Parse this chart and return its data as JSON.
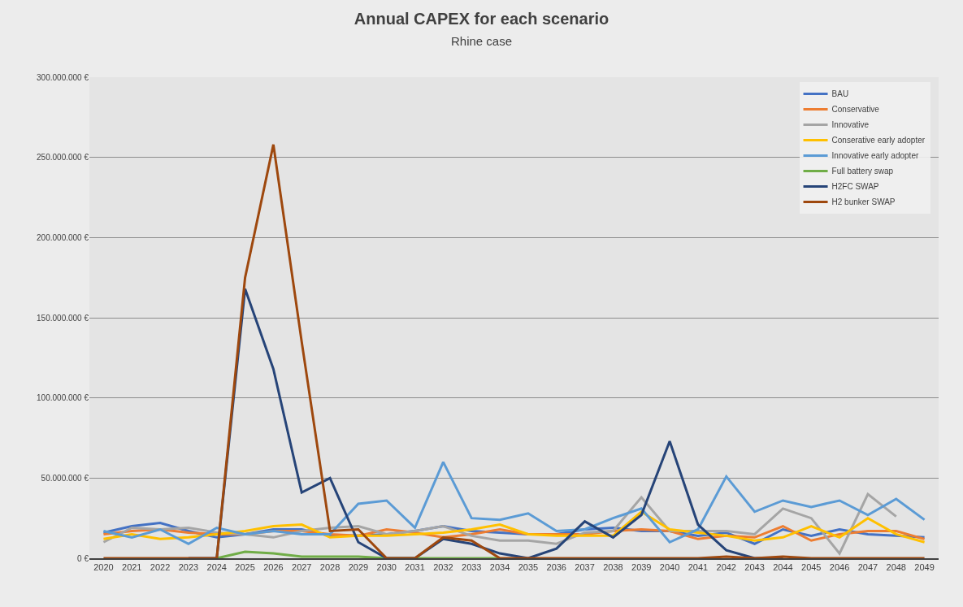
{
  "chart_data": {
    "type": "line",
    "title": "Annual CAPEX for each scenario",
    "subtitle": "Rhine case",
    "categories": [
      "2020",
      "2021",
      "2022",
      "2023",
      "2024",
      "2025",
      "2026",
      "2027",
      "2028",
      "2029",
      "2030",
      "2031",
      "2032",
      "2033",
      "2034",
      "2035",
      "2036",
      "2037",
      "2038",
      "2039",
      "2040",
      "2041",
      "2042",
      "2043",
      "2044",
      "2045",
      "2046",
      "2047",
      "2048",
      "2049"
    ],
    "ylim": [
      0,
      300000000
    ],
    "yticks": [
      {
        "value": 0,
        "label": "0 €"
      },
      {
        "value": 50000000,
        "label": "50.000.000 €"
      },
      {
        "value": 100000000,
        "label": "100.000.000 €"
      },
      {
        "value": 150000000,
        "label": "150.000.000 €"
      },
      {
        "value": 200000000,
        "label": "200.000.000 €"
      },
      {
        "value": 250000000,
        "label": "250.000.000 €"
      },
      {
        "value": 300000000,
        "label": "300.000.000 €"
      }
    ],
    "grid": "y",
    "legend": "top right",
    "marker": "none",
    "line_style": "solid",
    "series": [
      {
        "name": "BAU",
        "color": "#4472c4",
        "values": [
          16000000,
          20000000,
          22000000,
          17000000,
          13000000,
          15000000,
          18000000,
          18000000,
          14000000,
          14000000,
          15000000,
          17000000,
          20000000,
          17000000,
          16000000,
          15000000,
          15000000,
          18000000,
          19000000,
          17000000,
          17000000,
          14000000,
          16000000,
          9000000,
          18000000,
          14000000,
          18000000,
          15000000,
          14000000,
          13000000
        ]
      },
      {
        "name": "Conservative",
        "color": "#ed7d31",
        "values": [
          15000000,
          17000000,
          18000000,
          16000000,
          15000000,
          15000000,
          17000000,
          17000000,
          15000000,
          14000000,
          18000000,
          16000000,
          13000000,
          15000000,
          18000000,
          15000000,
          15000000,
          15000000,
          17000000,
          18000000,
          17000000,
          12000000,
          14000000,
          13000000,
          20000000,
          11000000,
          15000000,
          17000000,
          17000000,
          12000000
        ]
      },
      {
        "name": "Innovative",
        "color": "#a5a5a5",
        "values": [
          10000000,
          19000000,
          18000000,
          19000000,
          16000000,
          15000000,
          13000000,
          17000000,
          19000000,
          20000000,
          15000000,
          17000000,
          20000000,
          14000000,
          11000000,
          11000000,
          9000000,
          16000000,
          17000000,
          38000000,
          17000000,
          17000000,
          17000000,
          15000000,
          31000000,
          25000000,
          3000000,
          40000000,
          26000000,
          null
        ]
      },
      {
        "name": "Conserative early adopter",
        "color": "#ffc000",
        "values": [
          12000000,
          15000000,
          12000000,
          13000000,
          15000000,
          17000000,
          20000000,
          21000000,
          13000000,
          14000000,
          14000000,
          15000000,
          16000000,
          18000000,
          21000000,
          15000000,
          14000000,
          14000000,
          14000000,
          29000000,
          18000000,
          16000000,
          14000000,
          11000000,
          13000000,
          20000000,
          13000000,
          25000000,
          15000000,
          10000000
        ]
      },
      {
        "name": "Innovative early adopter",
        "color": "#5b9bd5",
        "values": [
          17000000,
          13000000,
          18000000,
          9000000,
          19000000,
          15000000,
          17000000,
          15000000,
          15000000,
          34000000,
          36000000,
          19000000,
          60000000,
          25000000,
          24000000,
          28000000,
          17000000,
          18000000,
          25000000,
          31000000,
          10000000,
          18000000,
          51000000,
          29000000,
          36000000,
          32000000,
          36000000,
          27000000,
          37000000,
          24000000
        ]
      },
      {
        "name": "Full battery swap",
        "color": "#70ad47",
        "values": [
          null,
          null,
          null,
          null,
          0,
          4000000,
          3000000,
          1000000,
          1000000,
          1000000,
          0,
          0,
          0,
          0,
          0,
          null,
          null,
          null,
          null,
          null,
          null,
          null,
          null,
          null,
          null,
          null,
          null,
          null,
          null,
          null
        ]
      },
      {
        "name": "H2FC SWAP",
        "color": "#264478",
        "values": [
          null,
          null,
          null,
          0,
          0,
          168000000,
          118000000,
          41000000,
          50000000,
          10000000,
          0,
          0,
          12000000,
          9000000,
          3000000,
          0,
          6000000,
          23000000,
          13000000,
          27000000,
          73000000,
          21000000,
          5000000,
          0,
          0,
          null,
          null,
          null,
          null,
          null
        ]
      },
      {
        "name": "H2 bunker SWAP",
        "color": "#9e480e",
        "values": [
          0,
          0,
          0,
          0,
          0,
          175000000,
          258000000,
          135000000,
          17000000,
          18000000,
          0,
          0,
          13000000,
          11000000,
          0,
          0,
          0,
          0,
          0,
          0,
          0,
          0,
          1000000,
          0,
          1000000,
          0,
          0,
          0,
          0,
          0
        ]
      }
    ]
  }
}
